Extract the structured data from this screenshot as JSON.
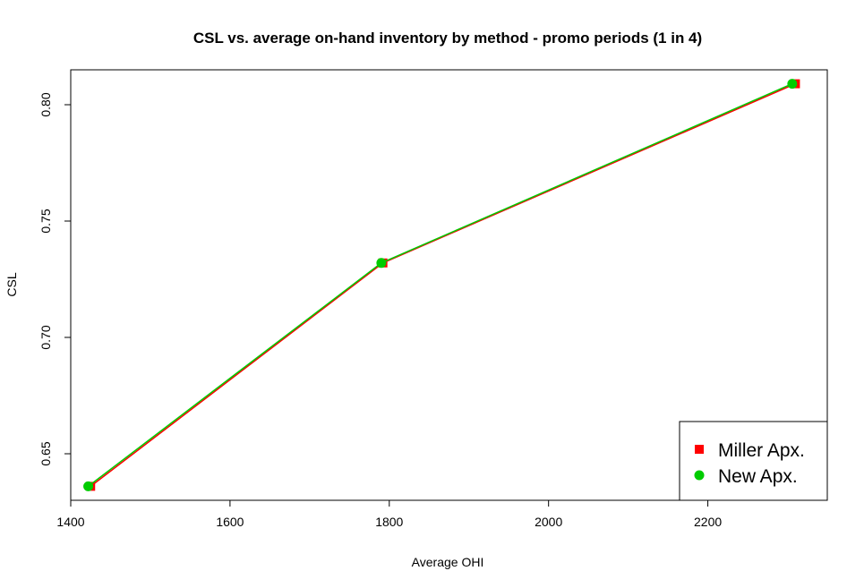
{
  "chart_data": {
    "type": "line",
    "title": "CSL vs. average on-hand inventory by method - promo periods (1 in 4)",
    "xlabel": "Average OHI",
    "ylabel": "CSL",
    "xlim": [
      1400,
      2350
    ],
    "ylim": [
      0.63,
      0.815
    ],
    "x_ticks": [
      1400,
      1600,
      1800,
      2000,
      2200
    ],
    "y_ticks": [
      0.65,
      0.7,
      0.75,
      0.8
    ],
    "x_tick_labels": [
      "1400",
      "1600",
      "1800",
      "2000",
      "2200"
    ],
    "y_tick_labels": [
      "0.65",
      "0.70",
      "0.75",
      "0.80"
    ],
    "grid": false,
    "legend_position": "bottom-right",
    "series": [
      {
        "name": "Miller Apx.",
        "color": "#ff0000",
        "marker": "square",
        "x": [
          1425,
          1792,
          2310
        ],
        "y": [
          0.636,
          0.732,
          0.809
        ]
      },
      {
        "name": "New Apx.",
        "color": "#00cc00",
        "marker": "circle",
        "x": [
          1422,
          1790,
          2306
        ],
        "y": [
          0.636,
          0.732,
          0.809
        ]
      }
    ]
  }
}
